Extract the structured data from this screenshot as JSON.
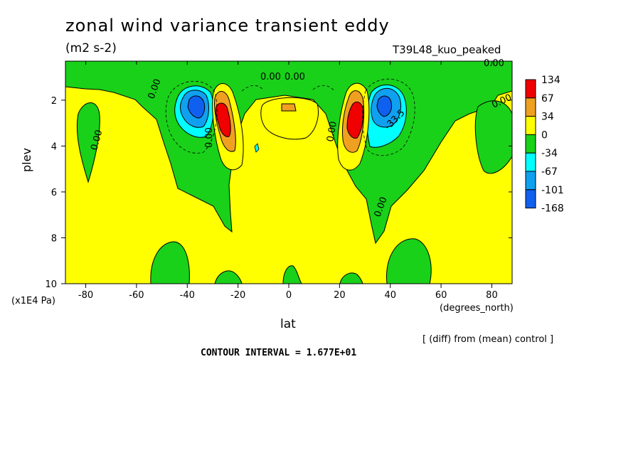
{
  "header": {
    "title": "zonal wind variance transient eddy",
    "units": "(m2 s-2)",
    "run_label": "T39L48_kuo_peaked"
  },
  "footer": {
    "diff_note": "[ (diff) from (mean) control ]",
    "contour_interval": "CONTOUR INTERVAL = 1.677E+01"
  },
  "chart_data": {
    "type": "heatmap",
    "title": "zonal wind variance transient eddy",
    "units": "(m2 s-2)",
    "xlabel": "lat",
    "xunit": "(degrees_north)",
    "ylabel": "plev",
    "yunit": "(x1E4 Pa)",
    "xlim": [
      -88,
      88
    ],
    "ylim": [
      10,
      0.3
    ],
    "xticks": [
      -80,
      -60,
      -40,
      -20,
      0,
      20,
      40,
      60,
      80
    ],
    "yticks": [
      2,
      4,
      6,
      8,
      10
    ],
    "contour_interval": 16.77,
    "legend": {
      "placement": "right",
      "labels": [
        "134",
        "67",
        "34",
        "0",
        "-34",
        "-67",
        "-101",
        "-168"
      ],
      "colors": [
        "#f00000",
        "#f0a020",
        "#ffff00",
        "#19d119",
        "#00ffff",
        "#10a0f0",
        "#1060f0"
      ]
    },
    "contour_labels": [
      "0.00",
      "0.00",
      "0.00",
      "0.00",
      "0.00",
      "0.00",
      "0.00",
      "0.00",
      "-33.5",
      "0.00"
    ],
    "features": [
      {
        "lat": -37,
        "plev": 2.0,
        "value": -168
      },
      {
        "lat": -26,
        "plev": 2.8,
        "value": 134
      },
      {
        "lat": 26,
        "plev": 2.8,
        "value": 134
      },
      {
        "lat": 37,
        "plev": 2.0,
        "value": -168
      },
      {
        "lat": 0,
        "plev": 2.2,
        "value": 34
      }
    ]
  }
}
